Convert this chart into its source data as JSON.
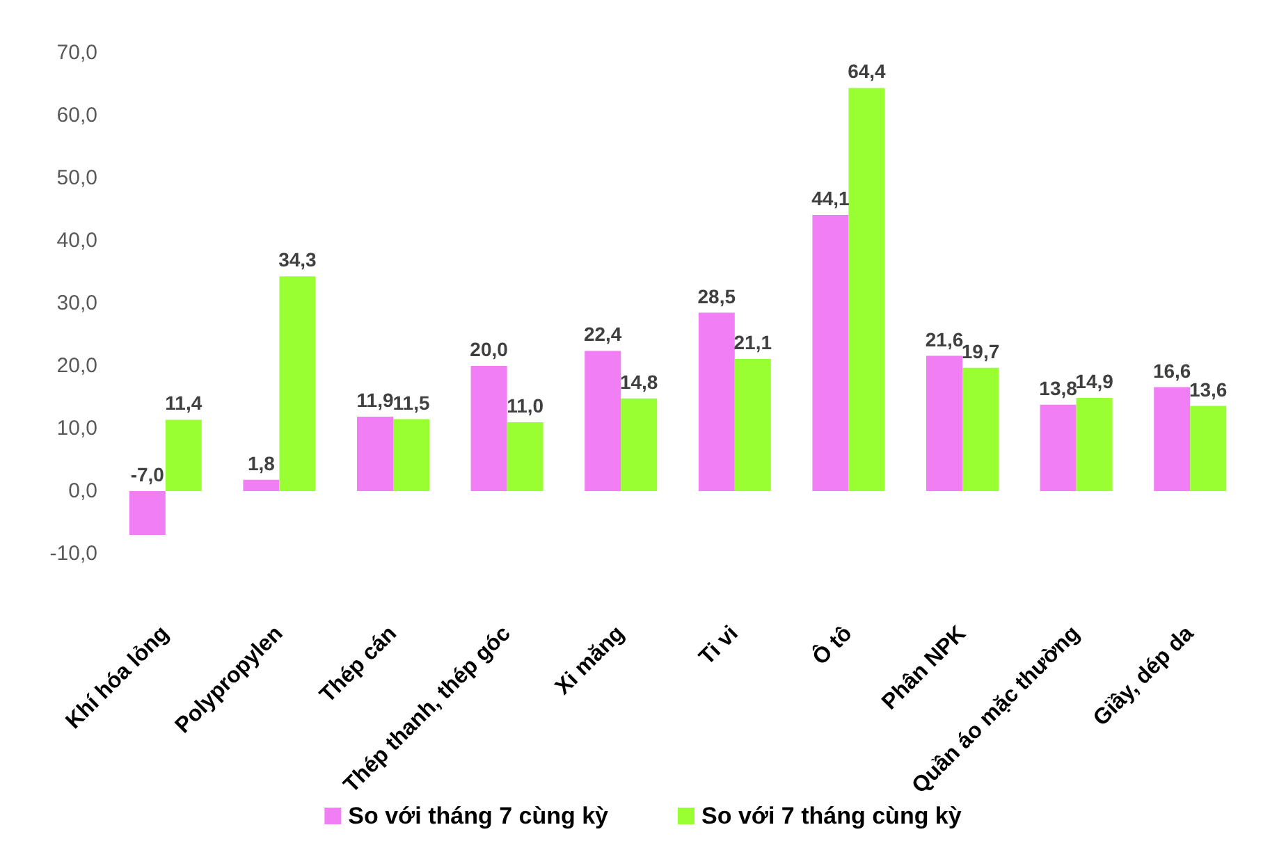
{
  "chart_data": {
    "type": "bar",
    "categories": [
      "Khí hóa lỏng",
      "Polypropylen",
      "Thép cán",
      "Thép thanh, thép góc",
      "Xi măng",
      "Ti vi",
      "Ô tô",
      "Phân NPK",
      "Quần áo mặc thường",
      "Giầy, dép da"
    ],
    "series": [
      {
        "name": "So với tháng 7 cùng kỳ",
        "color": "#f27ef5",
        "values": [
          -7.0,
          1.8,
          11.9,
          20.0,
          22.4,
          28.5,
          44.1,
          21.6,
          13.8,
          16.6
        ],
        "value_labels": [
          "-7,0",
          "1,8",
          "11,9",
          "20,0",
          "22,4",
          "28,5",
          "44,1",
          "21,6",
          "13,8",
          "16,6"
        ]
      },
      {
        "name": "So với 7 tháng cùng kỳ",
        "color": "#99ff33",
        "values": [
          11.4,
          34.3,
          11.5,
          11.0,
          14.8,
          21.1,
          64.4,
          19.7,
          14.9,
          13.6
        ],
        "value_labels": [
          "11,4",
          "34,3",
          "11,5",
          "11,0",
          "14,8",
          "21,1",
          "64,4",
          "19,7",
          "14,9",
          "13,6"
        ]
      }
    ],
    "ylim": [
      -10,
      70
    ],
    "yticks": [
      {
        "value": -10,
        "label": "-10,0"
      },
      {
        "value": 0,
        "label": "0,0"
      },
      {
        "value": 10,
        "label": "10,0"
      },
      {
        "value": 20,
        "label": "20,0"
      },
      {
        "value": 30,
        "label": "30,0"
      },
      {
        "value": 40,
        "label": "40,0"
      },
      {
        "value": 50,
        "label": "50,0"
      },
      {
        "value": 60,
        "label": "60,0"
      },
      {
        "value": 70,
        "label": "70,0"
      }
    ],
    "grid": false,
    "legend": "bottom"
  }
}
